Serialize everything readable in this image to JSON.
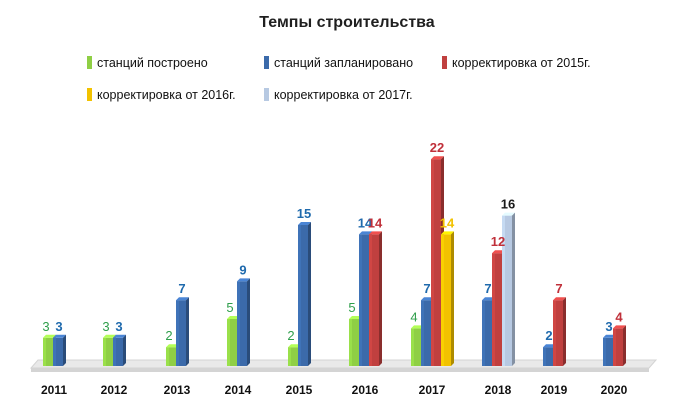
{
  "chart_data": {
    "type": "bar",
    "title": "Темпы строительства",
    "categories": [
      "2011",
      "2012",
      "2013",
      "2014",
      "2015",
      "2016",
      "2017",
      "2018",
      "2019",
      "2020"
    ],
    "series": [
      {
        "name": "станций построено",
        "color": "#8fcf45",
        "values": [
          3,
          3,
          2,
          5,
          2,
          5,
          4,
          null,
          null,
          null
        ],
        "labels": [
          "3",
          "3",
          "2",
          "5",
          "2",
          "5",
          "4",
          "",
          "",
          ""
        ]
      },
      {
        "name": "станций запланировано",
        "color": "#3b6aaa",
        "values": [
          3,
          3,
          7,
          9,
          15,
          14,
          7,
          7,
          2,
          3
        ],
        "labels": [
          "3",
          "3",
          "7",
          "9",
          "15",
          "14",
          "7",
          "7",
          "2",
          "3"
        ]
      },
      {
        "name": "корректировка от 2015г.",
        "color": "#c0403f",
        "values": [
          null,
          null,
          null,
          null,
          null,
          14,
          22,
          12,
          7,
          4
        ],
        "labels": [
          "",
          "",
          "",
          "",
          "",
          "14",
          "22",
          "12",
          "7",
          "4"
        ]
      },
      {
        "name": "корректировка от 2016г.",
        "color": "#f2c200",
        "values": [
          null,
          null,
          null,
          null,
          null,
          null,
          14,
          null,
          null,
          null
        ],
        "labels": [
          "",
          "",
          "",
          "",
          "",
          "",
          "14",
          "",
          "",
          ""
        ]
      },
      {
        "name": "корректировка от 2017г.",
        "color": "#b7c9e2",
        "values": [
          null,
          null,
          null,
          null,
          null,
          null,
          null,
          16,
          null,
          null
        ],
        "labels": [
          "",
          "",
          "",
          "",
          "",
          "",
          "",
          "16",
          "",
          ""
        ]
      }
    ],
    "label_colors": [
      "#2e9e4b",
      "#1f6aad",
      "#c0303a",
      "#f2c200",
      "#1a1a1a"
    ],
    "ylim": [
      0,
      22
    ],
    "grid": false,
    "legend_position": "top"
  }
}
